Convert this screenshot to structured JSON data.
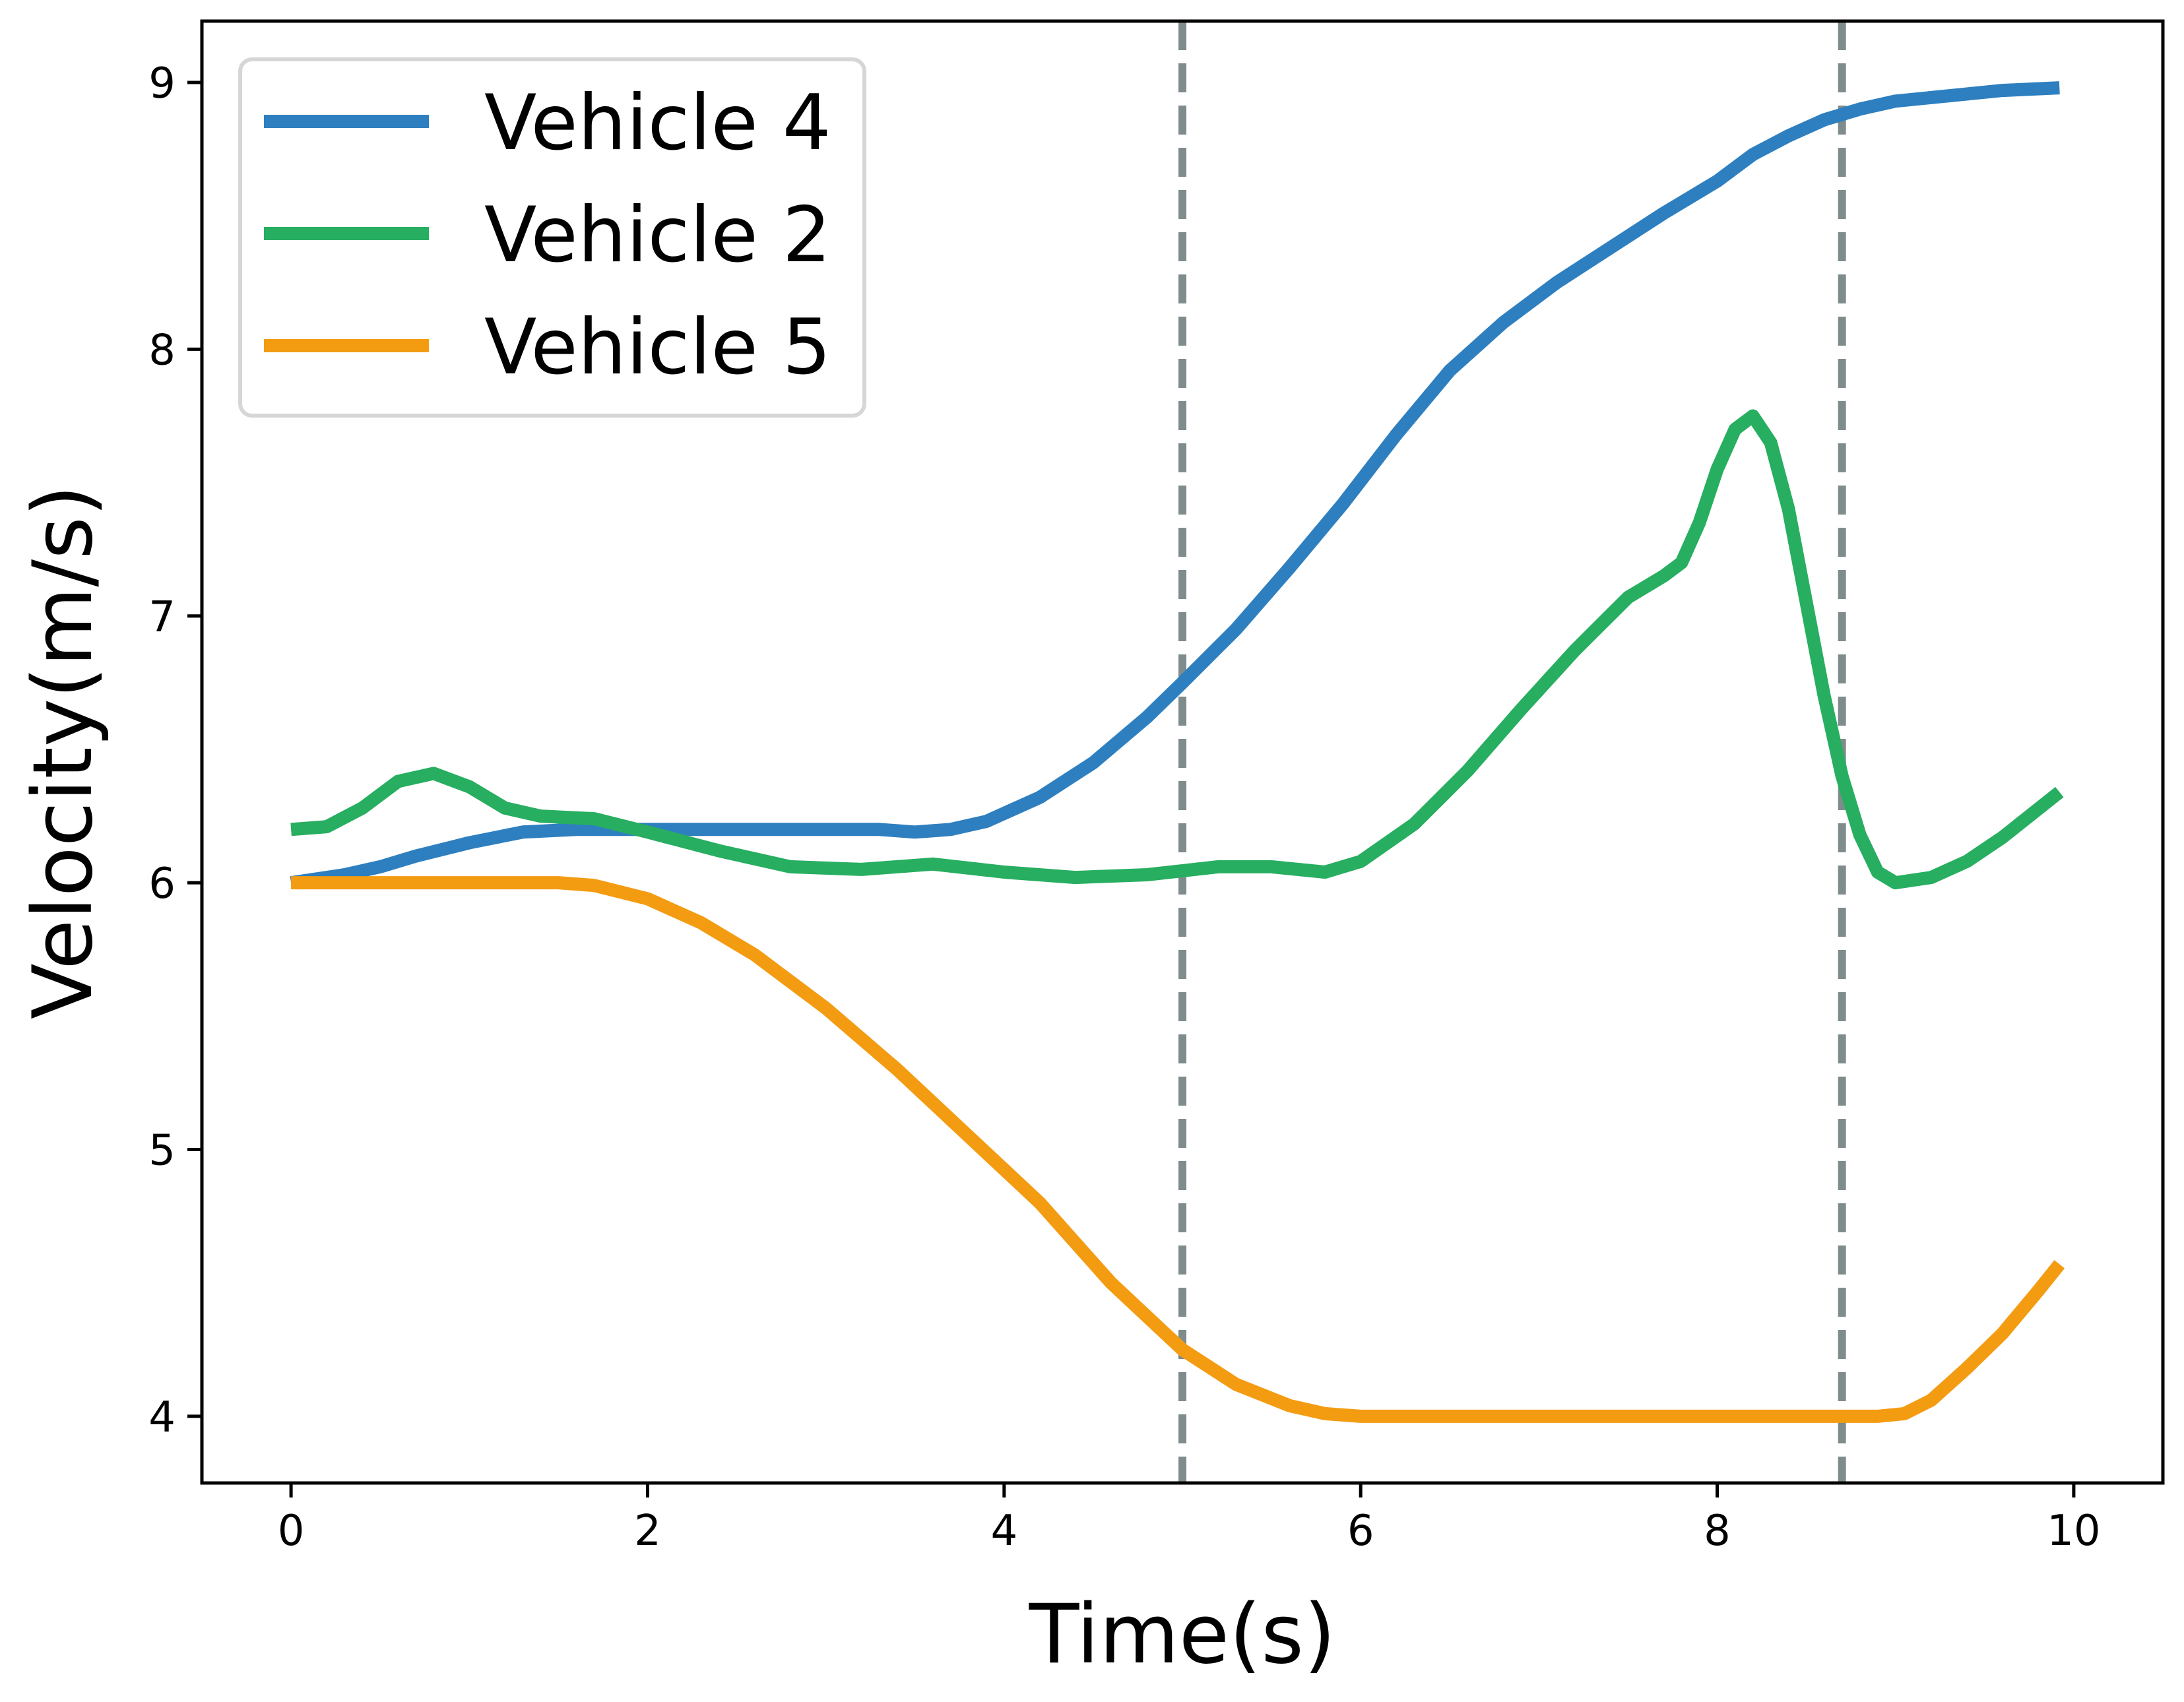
{
  "chart_data": {
    "type": "line",
    "title": "",
    "xlabel": "Time(s)",
    "ylabel": "Velocity(m/s)",
    "xlim": [
      -0.5,
      10.5
    ],
    "ylim": [
      3.75,
      9.23
    ],
    "xticks": [
      0,
      2,
      4,
      6,
      8,
      10
    ],
    "yticks": [
      4,
      5,
      6,
      7,
      8,
      9
    ],
    "grid": false,
    "legend_position": "upper-left",
    "vlines": [
      {
        "x": 5.0,
        "style": "dashed",
        "color": "#7f8c8d"
      },
      {
        "x": 8.7,
        "style": "dashed",
        "color": "#7f8c8d"
      }
    ],
    "series": [
      {
        "name": "Vehicle 4",
        "color": "#2e7fbf",
        "x": [
          0,
          0.3,
          0.5,
          0.7,
          1.0,
          1.3,
          1.6,
          2.0,
          2.5,
          3.0,
          3.3,
          3.5,
          3.7,
          3.9,
          4.2,
          4.5,
          4.8,
          5.0,
          5.3,
          5.6,
          5.9,
          6.2,
          6.5,
          6.8,
          7.1,
          7.4,
          7.7,
          8.0,
          8.2,
          8.4,
          8.6,
          8.8,
          9.0,
          9.3,
          9.6,
          9.92
        ],
        "y": [
          6.0,
          6.03,
          6.06,
          6.1,
          6.15,
          6.19,
          6.2,
          6.2,
          6.2,
          6.2,
          6.2,
          6.19,
          6.2,
          6.23,
          6.32,
          6.45,
          6.62,
          6.75,
          6.95,
          7.18,
          7.42,
          7.68,
          7.92,
          8.1,
          8.25,
          8.38,
          8.51,
          8.63,
          8.73,
          8.8,
          8.86,
          8.9,
          8.93,
          8.95,
          8.97,
          8.98
        ]
      },
      {
        "name": "Vehicle 2",
        "color": "#27ae60",
        "x": [
          0,
          0.2,
          0.4,
          0.6,
          0.8,
          1.0,
          1.2,
          1.4,
          1.7,
          2.0,
          2.4,
          2.8,
          3.2,
          3.6,
          4.0,
          4.4,
          4.8,
          5.2,
          5.5,
          5.8,
          6.0,
          6.3,
          6.6,
          6.9,
          7.2,
          7.5,
          7.7,
          7.8,
          7.9,
          8.0,
          8.1,
          8.2,
          8.3,
          8.4,
          8.5,
          8.6,
          8.7,
          8.8,
          8.9,
          9.0,
          9.2,
          9.4,
          9.6,
          9.92
        ],
        "y": [
          6.2,
          6.21,
          6.28,
          6.38,
          6.41,
          6.36,
          6.28,
          6.25,
          6.24,
          6.19,
          6.12,
          6.06,
          6.05,
          6.07,
          6.04,
          6.02,
          6.03,
          6.06,
          6.06,
          6.04,
          6.08,
          6.22,
          6.42,
          6.65,
          6.87,
          7.07,
          7.15,
          7.2,
          7.35,
          7.55,
          7.7,
          7.75,
          7.65,
          7.4,
          7.05,
          6.7,
          6.4,
          6.18,
          6.04,
          6.0,
          6.02,
          6.08,
          6.17,
          6.34
        ]
      },
      {
        "name": "Vehicle 5",
        "color": "#f39c12",
        "x": [
          0,
          0.5,
          1.0,
          1.5,
          1.7,
          2.0,
          2.3,
          2.6,
          3.0,
          3.4,
          3.8,
          4.2,
          4.6,
          5.0,
          5.3,
          5.6,
          5.8,
          6.0,
          6.5,
          7.0,
          7.5,
          8.0,
          8.5,
          8.9,
          9.05,
          9.2,
          9.4,
          9.6,
          9.8,
          9.92
        ],
        "y": [
          6.0,
          6.0,
          6.0,
          6.0,
          5.99,
          5.94,
          5.85,
          5.73,
          5.53,
          5.3,
          5.05,
          4.8,
          4.5,
          4.25,
          4.12,
          4.04,
          4.01,
          4.0,
          4.0,
          4.0,
          4.0,
          4.0,
          4.0,
          4.0,
          4.01,
          4.06,
          4.18,
          4.31,
          4.47,
          4.57
        ]
      }
    ]
  }
}
